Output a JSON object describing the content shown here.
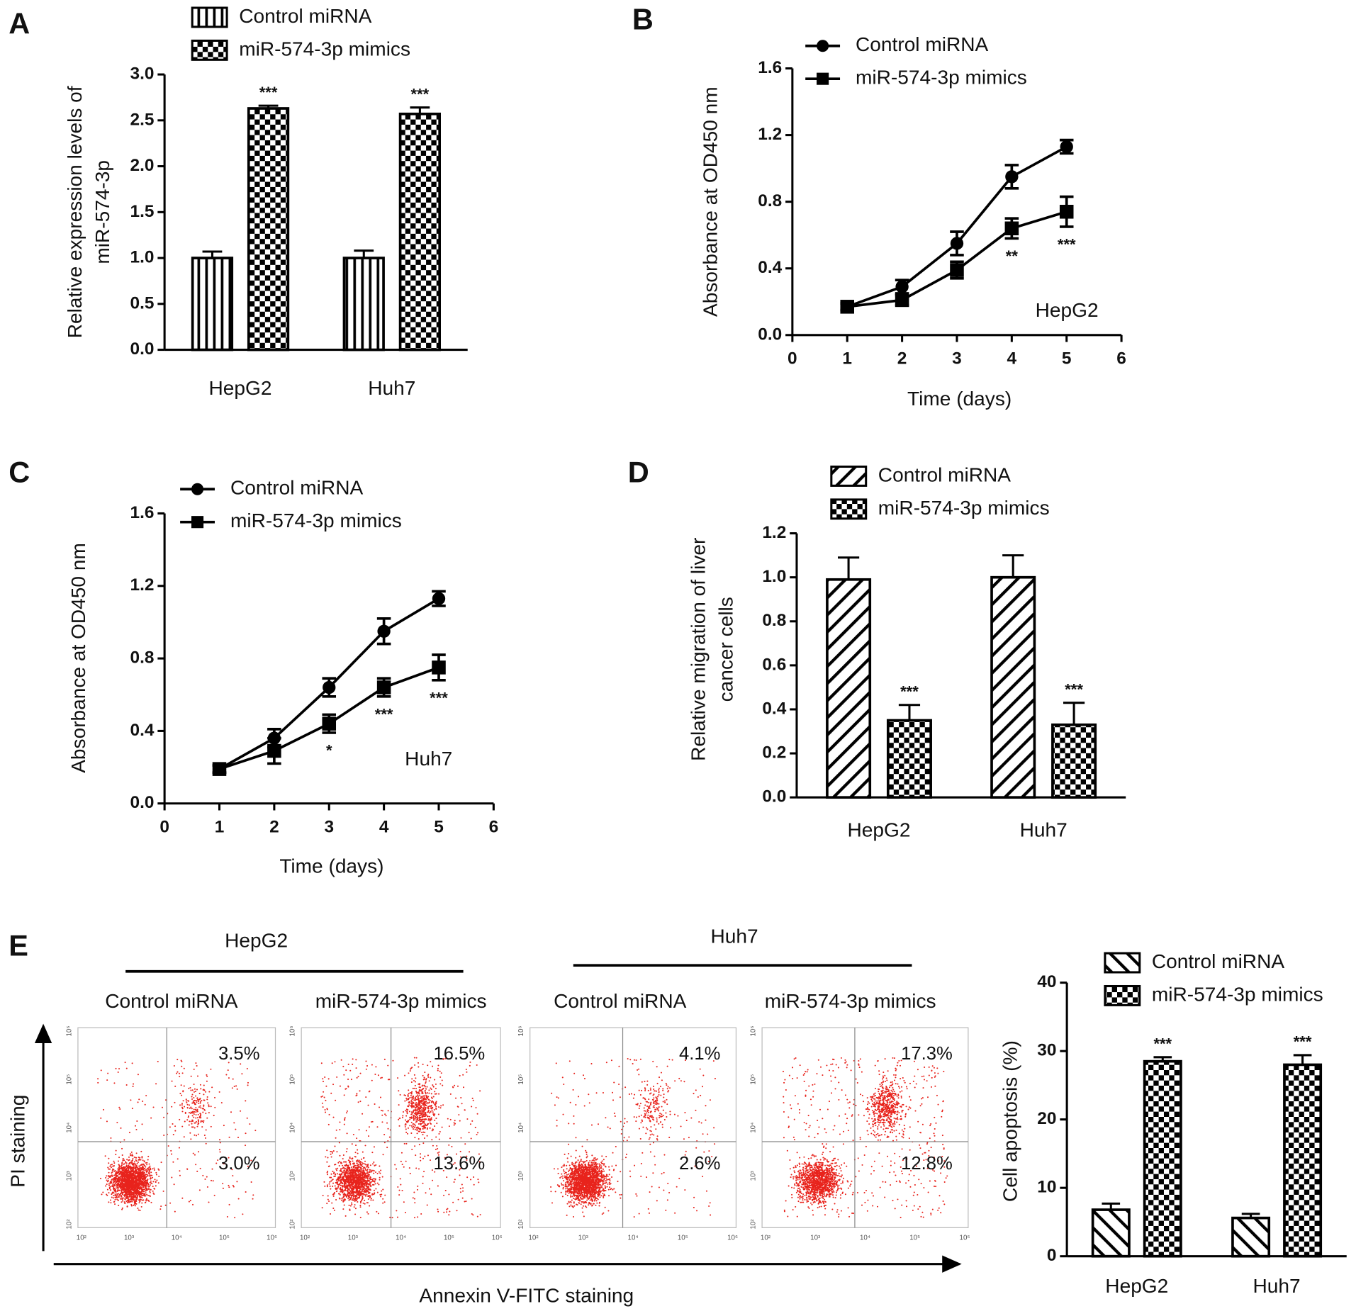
{
  "panel_labels": [
    "A",
    "B",
    "C",
    "D",
    "E"
  ],
  "chart_data": [
    {
      "type": "bar",
      "ylabel": [
        "Relative expression levels of",
        "miR-574-3p"
      ],
      "categories": [
        "HepG2",
        "Huh7"
      ],
      "ylim": [
        0,
        3
      ],
      "yticks": [
        {
          "value": 0,
          "label": "0.0"
        },
        0.5,
        {
          "value": 1,
          "label": "1.0"
        },
        1.5,
        {
          "value": 2,
          "label": "2.0"
        },
        2.5,
        {
          "value": 3,
          "label": "3.0"
        }
      ],
      "series": [
        {
          "name": "Control miRNA",
          "pattern": "vertical-stripes",
          "color": "#000000",
          "values": [
            1.0,
            1.0
          ],
          "errors": [
            0.07,
            0.08
          ],
          "annotations": [
            null,
            null
          ]
        },
        {
          "name": "miR-574-3p mimics",
          "pattern": "checkerboard",
          "color": "#000000",
          "values": [
            2.63,
            2.57
          ],
          "errors": [
            0.03,
            0.07
          ],
          "annotations": [
            "***",
            "***"
          ]
        }
      ]
    },
    {
      "type": "line",
      "ylabel": [
        "Absorbance at OD450 nm"
      ],
      "xlabel": "Time (days)",
      "inset": "HepG2",
      "x": [
        1,
        2,
        3,
        4,
        5
      ],
      "xlim": [
        0,
        6
      ],
      "xticks": [
        0,
        1,
        2,
        3,
        4,
        5,
        6
      ],
      "ylim": [
        0,
        1.6
      ],
      "yticks": [
        {
          "value": 0,
          "label": "0.0"
        },
        0.4,
        0.8,
        1.2,
        1.6
      ],
      "series": [
        {
          "name": "Control miRNA",
          "marker": "circle",
          "color": "#000000",
          "values": [
            0.17,
            0.29,
            0.55,
            0.95,
            1.13
          ],
          "errors": [
            0.02,
            0.04,
            0.07,
            0.07,
            0.04
          ],
          "annotations": [
            null,
            null,
            null,
            null,
            null
          ]
        },
        {
          "name": "miR-574-3p mimics",
          "marker": "square",
          "color": "#000000",
          "values": [
            0.17,
            0.21,
            0.39,
            0.64,
            0.74
          ],
          "errors": [
            0.02,
            0.03,
            0.05,
            0.06,
            0.09
          ],
          "annotations": [
            null,
            null,
            null,
            "**",
            "***"
          ]
        }
      ]
    },
    {
      "type": "line",
      "ylabel": [
        "Absorbance at OD450 nm"
      ],
      "xlabel": "Time (days)",
      "inset": "Huh7",
      "x": [
        1,
        2,
        3,
        4,
        5
      ],
      "xlim": [
        0,
        6
      ],
      "xticks": [
        0,
        1,
        2,
        3,
        4,
        5,
        6
      ],
      "ylim": [
        0,
        1.6
      ],
      "yticks": [
        {
          "value": 0,
          "label": "0.0"
        },
        0.4,
        0.8,
        1.2,
        1.6
      ],
      "series": [
        {
          "name": "Control miRNA",
          "marker": "circle",
          "color": "#000000",
          "values": [
            0.19,
            0.36,
            0.64,
            0.95,
            1.13
          ],
          "errors": [
            0.02,
            0.05,
            0.05,
            0.07,
            0.04
          ],
          "annotations": [
            null,
            null,
            null,
            null,
            null
          ]
        },
        {
          "name": "miR-574-3p mimics",
          "marker": "square",
          "color": "#000000",
          "values": [
            0.19,
            0.29,
            0.44,
            0.64,
            0.75
          ],
          "errors": [
            0.02,
            0.07,
            0.05,
            0.05,
            0.07
          ],
          "annotations": [
            null,
            null,
            "*",
            "***",
            "***"
          ]
        }
      ]
    },
    {
      "type": "bar",
      "ylabel": [
        "Relative migration of liver",
        "cancer cells"
      ],
      "categories": [
        "HepG2",
        "Huh7"
      ],
      "ylim": [
        0,
        1.2
      ],
      "yticks": [
        {
          "value": 0,
          "label": "0.0"
        },
        0.2,
        0.4,
        0.6,
        0.8,
        {
          "value": 1,
          "label": "1.0"
        },
        1.2
      ],
      "series": [
        {
          "name": "Control miRNA",
          "pattern": "back-diagonal",
          "color": "#000000",
          "values": [
            0.99,
            1.0
          ],
          "errors": [
            0.1,
            0.1
          ],
          "annotations": [
            null,
            null
          ]
        },
        {
          "name": "miR-574-3p mimics",
          "pattern": "checkerboard",
          "color": "#000000",
          "values": [
            0.35,
            0.33
          ],
          "errors": [
            0.07,
            0.1
          ],
          "annotations": [
            "***",
            "***"
          ]
        }
      ]
    },
    {
      "type": "bar",
      "ylabel": [
        "Cell apoptosis (%)"
      ],
      "categories": [
        "HepG2",
        "Huh7"
      ],
      "ylim": [
        0,
        40
      ],
      "yticks": [
        0,
        10,
        20,
        30,
        40
      ],
      "series": [
        {
          "name": "Control miRNA",
          "pattern": "forward-diagonal",
          "color": "#000000",
          "values": [
            6.8,
            5.6
          ],
          "errors": [
            0.9,
            0.6
          ],
          "annotations": [
            null,
            null
          ]
        },
        {
          "name": "miR-574-3p mimics",
          "pattern": "checkerboard",
          "color": "#000000",
          "values": [
            28.5,
            28.0
          ],
          "errors": [
            0.6,
            1.4
          ],
          "annotations": [
            "***",
            "***"
          ]
        }
      ]
    }
  ],
  "flow": {
    "ylabel": "PI staining",
    "xlabel": "Annexin V-FITC staining",
    "dot_color": "#e8231c",
    "axis_ticks": [
      "10²",
      "10³",
      "10⁴",
      "10⁵",
      "10⁶"
    ],
    "groups": [
      {
        "title": "HepG2",
        "plots": [
          {
            "title": "Control miRNA",
            "upper": "3.5%",
            "lower": "3.0%"
          },
          {
            "title": "miR-574-3p mimics",
            "upper": "16.5%",
            "lower": "13.6%"
          }
        ]
      },
      {
        "title": "Huh7",
        "plots": [
          {
            "title": "Control miRNA",
            "upper": "4.1%",
            "lower": "2.6%"
          },
          {
            "title": "miR-574-3p mimics",
            "upper": "17.3%",
            "lower": "12.8%"
          }
        ]
      }
    ]
  }
}
